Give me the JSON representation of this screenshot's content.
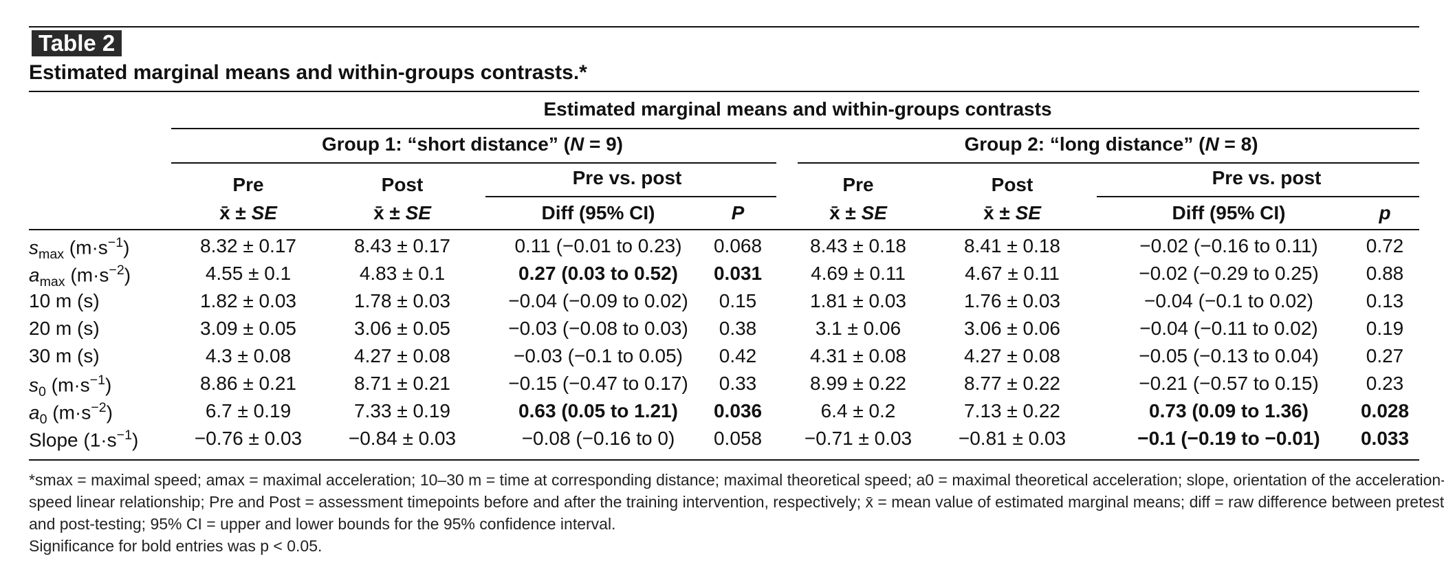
{
  "table": {
    "label": "Table 2",
    "caption": "Estimated marginal means and within-groups contrasts.*",
    "spanner": "Estimated marginal means and within-groups contrasts",
    "groups": [
      {
        "label": "Group 1: “short distance” (N = 9)"
      },
      {
        "label": "Group 2: “long distance” (N = 8)"
      }
    ],
    "subheaders": {
      "pre": "Pre",
      "post": "Post",
      "mean_se": "x̄ ± SE",
      "pre_vs_post": "Pre vs. post",
      "diff": "Diff (95% CI)",
      "p_group1": "P",
      "p_group2": "p"
    },
    "rows": [
      {
        "label": "s",
        "sub": "max",
        "unit": " (m·s",
        "exp": "−1",
        "close": ")",
        "g1": [
          "8.32 ± 0.17",
          "8.43 ± 0.17",
          "0.11 (−0.01 to 0.23)",
          "0.068"
        ],
        "g1_bold": false,
        "g2": [
          "8.43 ± 0.18",
          "8.41 ± 0.18",
          "−0.02 (−0.16 to 0.11)",
          "0.72"
        ],
        "g2_bold": false
      },
      {
        "label": "a",
        "sub": "max",
        "unit": " (m·s",
        "exp": "−2",
        "close": ")",
        "g1": [
          "4.55 ± 0.1",
          "4.83 ± 0.1",
          "0.27 (0.03 to 0.52)",
          "0.031"
        ],
        "g1_bold": true,
        "g2": [
          "4.69 ± 0.11",
          "4.67 ± 0.11",
          "−0.02 (−0.29 to 0.25)",
          "0.88"
        ],
        "g2_bold": false
      },
      {
        "label": "10 m (s)",
        "g1": [
          "1.82 ± 0.03",
          "1.78 ± 0.03",
          "−0.04 (−0.09 to 0.02)",
          "0.15"
        ],
        "g1_bold": false,
        "g2": [
          "1.81 ± 0.03",
          "1.76 ± 0.03",
          "−0.04 (−0.1 to 0.02)",
          "0.13"
        ],
        "g2_bold": false
      },
      {
        "label": "20 m (s)",
        "g1": [
          "3.09 ± 0.05",
          "3.06 ± 0.05",
          "−0.03 (−0.08 to 0.03)",
          "0.38"
        ],
        "g1_bold": false,
        "g2": [
          "3.1 ± 0.06",
          "3.06 ± 0.06",
          "−0.04 (−0.11 to 0.02)",
          "0.19"
        ],
        "g2_bold": false
      },
      {
        "label": "30 m (s)",
        "g1": [
          "4.3 ± 0.08",
          "4.27 ± 0.08",
          "−0.03 (−0.1 to 0.05)",
          "0.42"
        ],
        "g1_bold": false,
        "g2": [
          "4.31 ± 0.08",
          "4.27 ± 0.08",
          "−0.05 (−0.13 to 0.04)",
          "0.27"
        ],
        "g2_bold": false
      },
      {
        "label": "s",
        "sub": "0",
        "unit": " (m·s",
        "exp": "−1",
        "close": ")",
        "g1": [
          "8.86 ± 0.21",
          "8.71 ± 0.21",
          "−0.15 (−0.47 to 0.17)",
          "0.33"
        ],
        "g1_bold": false,
        "g2": [
          "8.99 ± 0.22",
          "8.77 ± 0.22",
          "−0.21 (−0.57 to 0.15)",
          "0.23"
        ],
        "g2_bold": false
      },
      {
        "label": "a",
        "sub": "0",
        "unit": " (m·s",
        "exp": "−2",
        "close": ")",
        "g1": [
          "6.7 ± 0.19",
          "7.33 ± 0.19",
          "0.63 (0.05 to 1.21)",
          "0.036"
        ],
        "g1_bold": true,
        "g2": [
          "6.4 ± 0.2",
          "7.13 ± 0.22",
          "0.73 (0.09 to 1.36)",
          "0.028"
        ],
        "g2_bold": true
      },
      {
        "label": "Slope (1·s",
        "exp": "−1",
        "close": ")",
        "g1": [
          "−0.76 ± 0.03",
          "−0.84 ± 0.03",
          "−0.08 (−0.16 to 0)",
          "0.058"
        ],
        "g1_bold": false,
        "g2": [
          "−0.71 ± 0.03",
          "−0.81 ± 0.03",
          "−0.1 (−0.19 to −0.01)",
          "0.033"
        ],
        "g2_bold": true
      }
    ],
    "footnotes": [
      "*smax = maximal speed; amax = maximal acceleration; 10–30 m = time at corresponding distance; maximal theoretical speed; a0 = maximal theoretical acceleration; slope, orientation of the acceleration-",
      "speed linear relationship; Pre and Post = assessment timepoints before and after the training intervention, respectively; x̄ = mean value of estimated marginal means; diff = raw difference between pretesting",
      "and post-testing; 95% CI = upper and lower bounds for the 95% confidence interval.",
      "Significance for bold entries was p < 0.05."
    ]
  }
}
